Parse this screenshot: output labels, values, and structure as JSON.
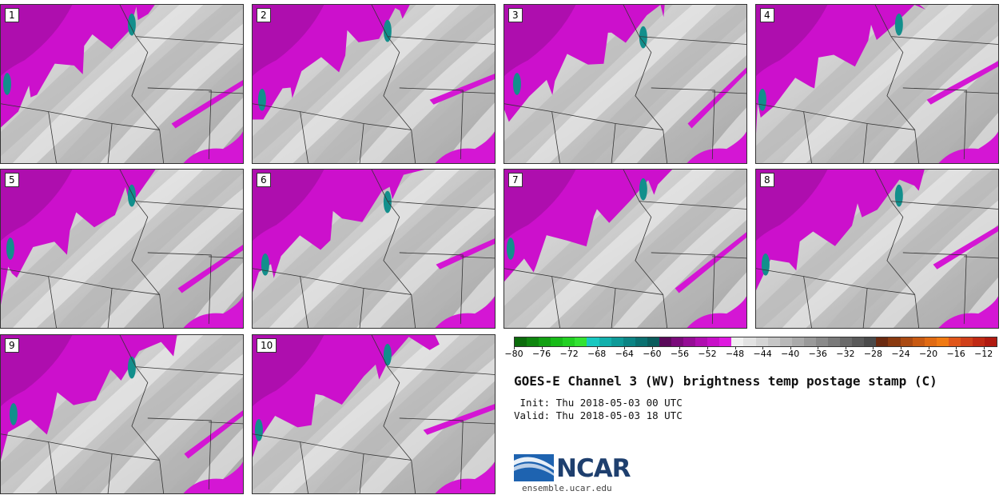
{
  "product": {
    "title": "GOES-E Channel 3 (WV) brightness temp postage stamp (C)",
    "init": " Init: Thu 2018-05-03 00 UTC",
    "valid": "Valid: Thu 2018-05-03 18 UTC"
  },
  "members": [
    "1",
    "2",
    "3",
    "4",
    "5",
    "6",
    "7",
    "8",
    "9",
    "10"
  ],
  "colorbar": {
    "unit": "C",
    "tick_labels": [
      "−80",
      "−76",
      "−72",
      "−68",
      "−64",
      "−60",
      "−56",
      "−52",
      "−48",
      "−44",
      "−40",
      "−36",
      "−32",
      "−28",
      "−24",
      "−20",
      "−16",
      "−12"
    ],
    "tick_values": [
      -80,
      -76,
      -72,
      -68,
      -64,
      -60,
      -56,
      -52,
      -48,
      -44,
      -40,
      -36,
      -32,
      -28,
      -24,
      -20,
      -16,
      -12
    ],
    "min": -80,
    "max": -10,
    "colors": [
      "#0b6b0b",
      "#0e850e",
      "#12a012",
      "#18bb18",
      "#22d022",
      "#33e233",
      "#18c8c0",
      "#12b0ac",
      "#0e9a98",
      "#0b8484",
      "#0a7070",
      "#0a5c5c",
      "#5a0a5a",
      "#7a0a7a",
      "#950c95",
      "#b00eb0",
      "#c810c8",
      "#df1adf",
      "#f0f0f0",
      "#e2e2e2",
      "#d4d4d4",
      "#c6c6c6",
      "#b8b8b8",
      "#aaaaaa",
      "#9a9a9a",
      "#8a8a8a",
      "#7a7a7a",
      "#6a6a6a",
      "#5a5a5a",
      "#4a4a4a",
      "#6a2a10",
      "#8a3a10",
      "#aa4a12",
      "#c85a12",
      "#e06a12",
      "#f07a12",
      "#e0561a",
      "#d0401a",
      "#c02a14",
      "#b01a10"
    ]
  },
  "branding": {
    "logo_name": "NCAR",
    "url": "ensemble.ucar.edu"
  }
}
